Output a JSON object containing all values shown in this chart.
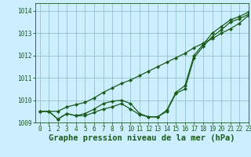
{
  "title": "Graphe pression niveau de la mer (hPa)",
  "background_color": "#cceeff",
  "grid_color": "#88bbbb",
  "line_color": "#1a5c1a",
  "xlim": [
    -0.5,
    23
  ],
  "ylim": [
    1009.0,
    1014.35
  ],
  "xticks": [
    0,
    1,
    2,
    3,
    4,
    5,
    6,
    7,
    8,
    9,
    10,
    11,
    12,
    13,
    14,
    15,
    16,
    17,
    18,
    19,
    20,
    21,
    22,
    23
  ],
  "yticks": [
    1009,
    1010,
    1011,
    1012,
    1013,
    1014
  ],
  "series": [
    [
      1009.5,
      1009.5,
      1009.15,
      1009.4,
      1009.3,
      1009.3,
      1009.45,
      1009.6,
      1009.7,
      1009.85,
      1009.6,
      1009.35,
      1009.25,
      1009.25,
      1009.5,
      1010.3,
      1010.5,
      1011.9,
      1012.4,
      1012.85,
      1013.15,
      1013.5,
      1013.65,
      1013.85
    ],
    [
      1009.5,
      1009.5,
      1009.15,
      1009.4,
      1009.3,
      1009.4,
      1009.6,
      1009.85,
      1009.95,
      1010.0,
      1009.85,
      1009.4,
      1009.25,
      1009.25,
      1009.55,
      1010.35,
      1010.65,
      1012.0,
      1012.5,
      1013.0,
      1013.3,
      1013.6,
      1013.75,
      1013.95
    ],
    [
      1009.5,
      1009.5,
      1009.5,
      1009.7,
      1009.8,
      1009.9,
      1010.1,
      1010.35,
      1010.55,
      1010.75,
      1010.9,
      1011.1,
      1011.3,
      1011.5,
      1011.7,
      1011.9,
      1012.1,
      1012.35,
      1012.55,
      1012.75,
      1013.0,
      1013.2,
      1013.45,
      1013.8
    ]
  ],
  "marker": "D",
  "markersize": 2.0,
  "linewidth": 0.9,
  "title_fontsize": 7.5,
  "tick_fontsize": 5.5,
  "tick_color": "#1a5c1a",
  "axis_color": "#1a5c1a",
  "ylabel_pad": 1,
  "xlabel_pad": 1
}
